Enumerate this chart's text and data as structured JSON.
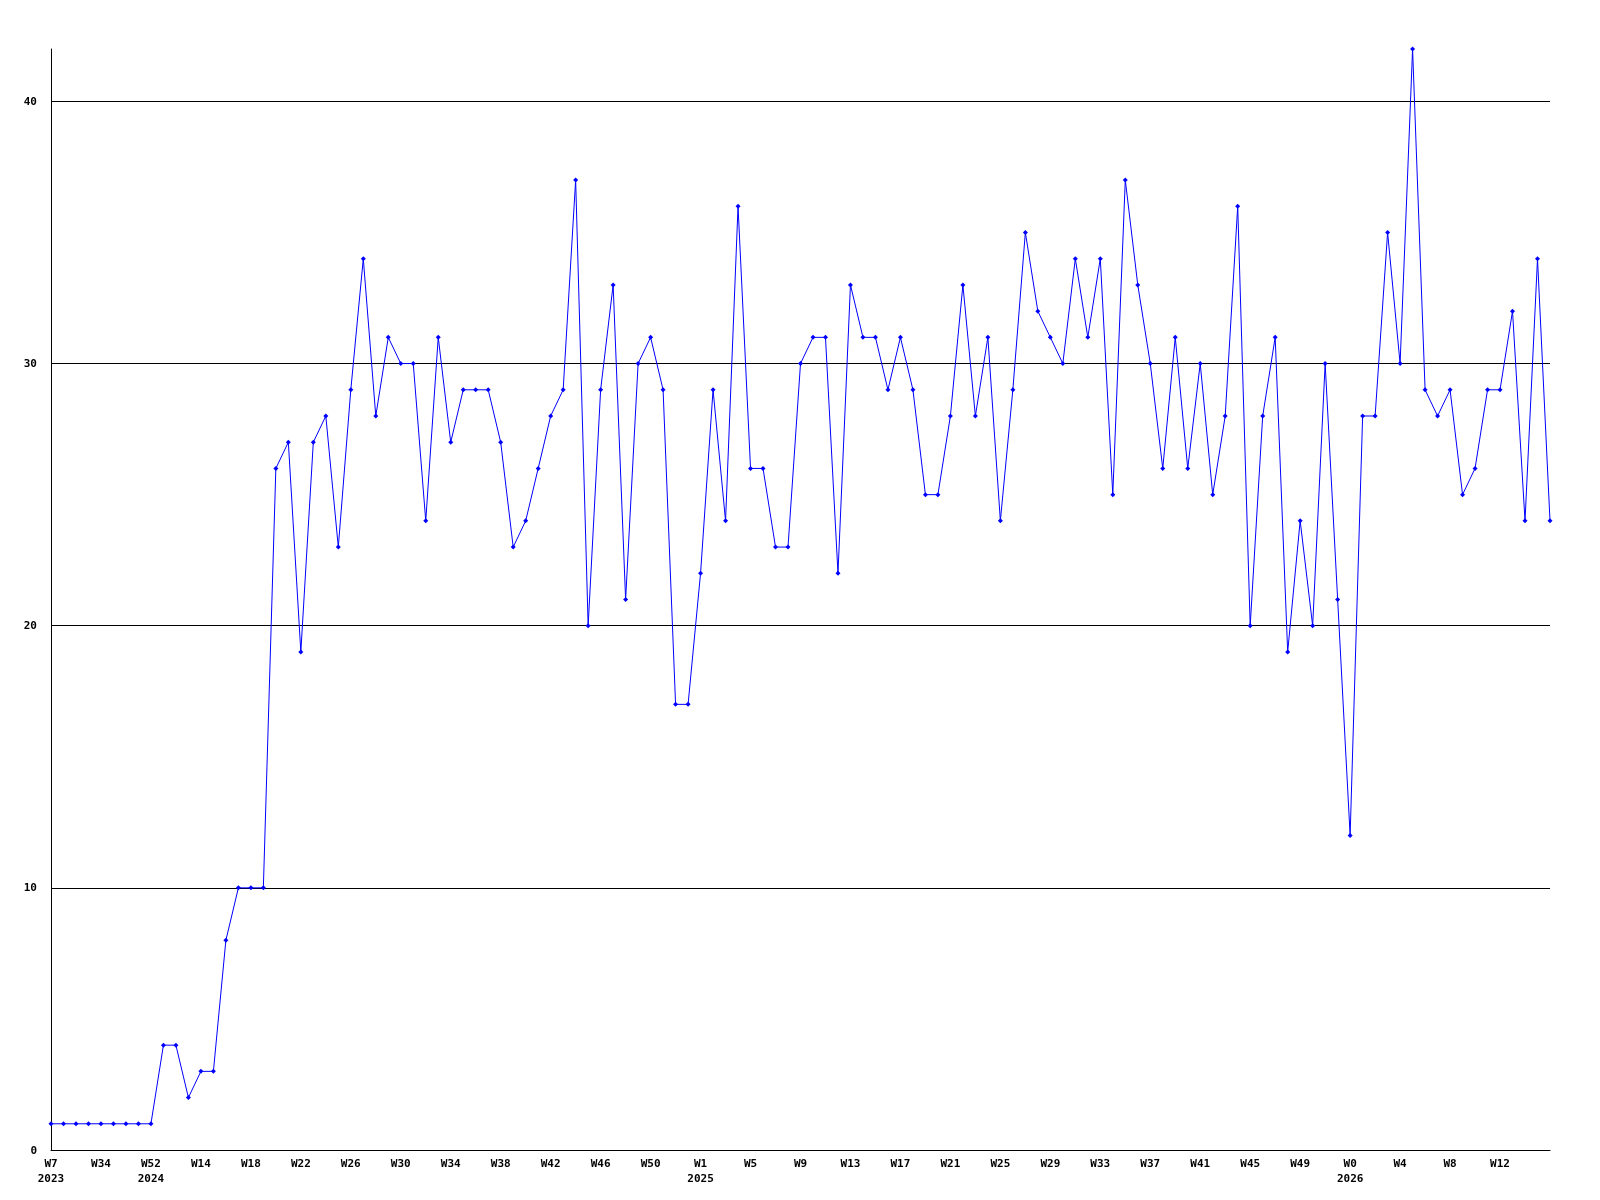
{
  "chart_data": {
    "type": "line",
    "categories": [
      "W7\n2023",
      null,
      null,
      null,
      "W34",
      null,
      null,
      null,
      "W52\n2024",
      null,
      null,
      null,
      "W14",
      null,
      null,
      null,
      "W18",
      null,
      null,
      null,
      "W22",
      null,
      null,
      null,
      "W26",
      null,
      null,
      null,
      "W30",
      null,
      null,
      null,
      "W34",
      null,
      null,
      null,
      "W38",
      null,
      null,
      null,
      "W42",
      null,
      null,
      null,
      "W46",
      null,
      null,
      null,
      "W50",
      null,
      null,
      null,
      "W1\n2025",
      null,
      null,
      null,
      "W5",
      null,
      null,
      null,
      "W9",
      null,
      null,
      null,
      "W13",
      null,
      null,
      null,
      "W17",
      null,
      null,
      null,
      "W21",
      null,
      null,
      null,
      "W25",
      null,
      null,
      null,
      "W29",
      null,
      null,
      null,
      "W33",
      null,
      null,
      null,
      "W37",
      null,
      null,
      null,
      "W41",
      null,
      null,
      null,
      "W45",
      null,
      null,
      null,
      "W49",
      null,
      null,
      null,
      "W0\n2026",
      null,
      null,
      null,
      "W4",
      null,
      null,
      null,
      "W8",
      null,
      null,
      null,
      "W12",
      null,
      null,
      null,
      null
    ],
    "series": [
      {
        "color": "#0000ff",
        "values": [
          1,
          1,
          1,
          1,
          1,
          1,
          1,
          1,
          1,
          4,
          4,
          2,
          3,
          3,
          8,
          10,
          10,
          10,
          26,
          27,
          19,
          27,
          28,
          23,
          29,
          34,
          28,
          31,
          30,
          30,
          24,
          31,
          27,
          29,
          29,
          29,
          27,
          23,
          24,
          26,
          28,
          29,
          37,
          20,
          29,
          33,
          21,
          30,
          31,
          29,
          17,
          17,
          22,
          29,
          24,
          36,
          26,
          26,
          23,
          23,
          30,
          31,
          31,
          22,
          33,
          31,
          31,
          29,
          31,
          29,
          25,
          25,
          28,
          33,
          28,
          31,
          24,
          29,
          35,
          32,
          31,
          30,
          34,
          31,
          34,
          25,
          37,
          33,
          30,
          26,
          31,
          26,
          30,
          25,
          28,
          36,
          20,
          28,
          31,
          19,
          24,
          20,
          30,
          21,
          12,
          28,
          28,
          35,
          30,
          42,
          29,
          28,
          29,
          25,
          26,
          29,
          29,
          32,
          24,
          34,
          24
        ]
      }
    ],
    "ylim": [
      0,
      42
    ],
    "yticks": [
      0,
      10,
      20,
      30,
      40
    ],
    "grid": "y",
    "marker": "diamond",
    "line_style": "solid"
  }
}
